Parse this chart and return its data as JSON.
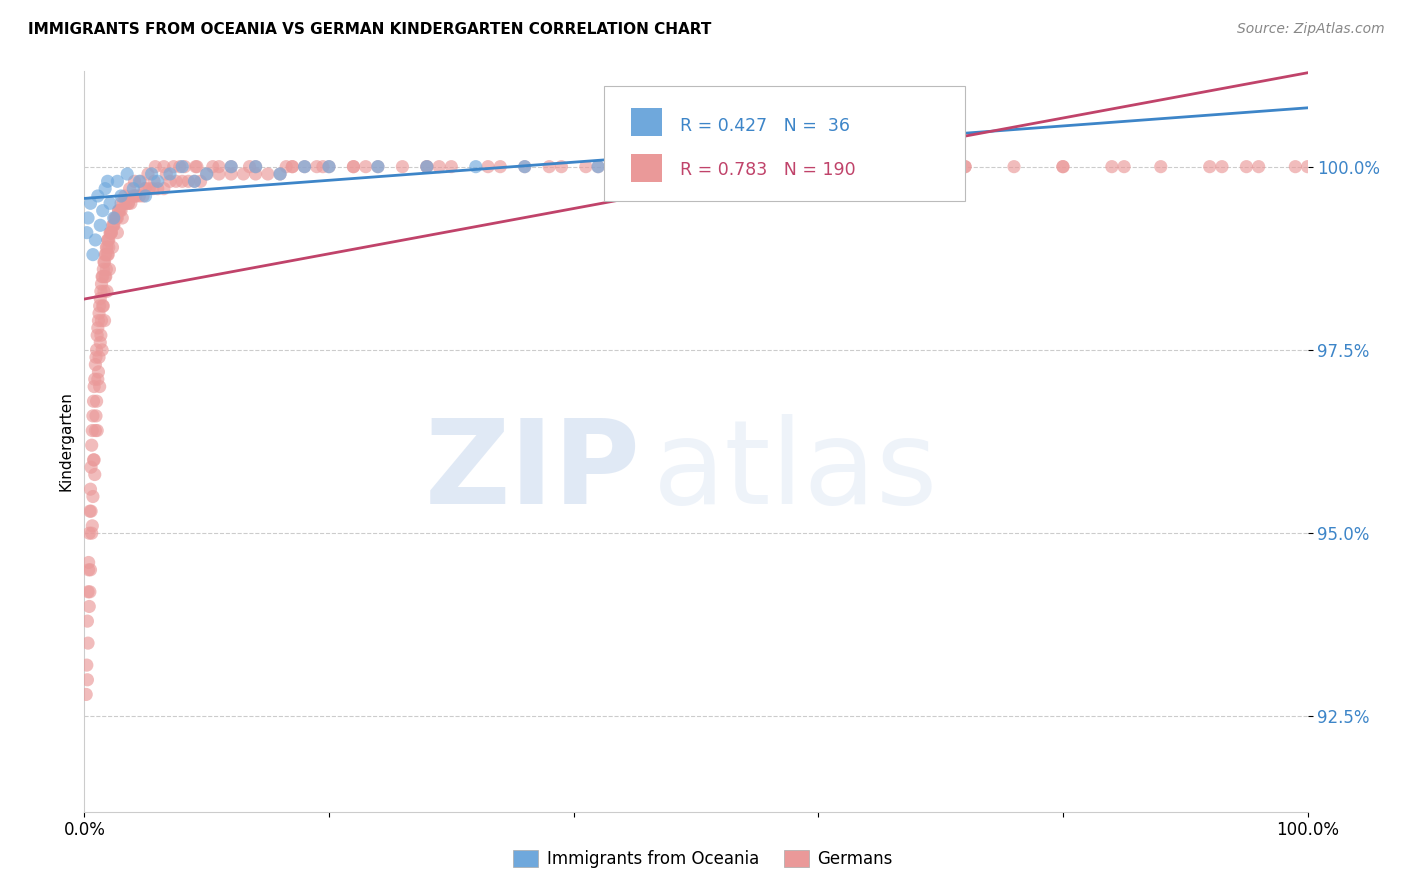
{
  "title": "IMMIGRANTS FROM OCEANIA VS GERMAN KINDERGARTEN CORRELATION CHART",
  "source": "Source: ZipAtlas.com",
  "ylabel": "Kindergarten",
  "ytick_values": [
    92.5,
    95.0,
    97.5,
    100.0
  ],
  "xrange": [
    0.0,
    100.0
  ],
  "yrange": [
    91.2,
    101.3
  ],
  "legend_blue_label": "Immigrants from Oceania",
  "legend_pink_label": "Germans",
  "R_blue": 0.427,
  "N_blue": 36,
  "R_pink": 0.783,
  "N_pink": 190,
  "blue_color": "#6fa8dc",
  "pink_color": "#ea9999",
  "blue_line_color": "#3d85c8",
  "pink_line_color": "#c0436a",
  "blue_scatter_x": [
    0.2,
    0.3,
    0.5,
    0.7,
    0.9,
    1.1,
    1.3,
    1.5,
    1.7,
    1.9,
    2.1,
    2.4,
    2.7,
    3.0,
    3.5,
    4.0,
    4.5,
    5.0,
    5.5,
    6.0,
    7.0,
    8.0,
    9.0,
    10.0,
    12.0,
    14.0,
    16.0,
    18.0,
    20.0,
    24.0,
    28.0,
    32.0,
    36.0,
    42.0,
    50.0,
    62.0
  ],
  "blue_scatter_y": [
    99.1,
    99.3,
    99.5,
    98.8,
    99.0,
    99.6,
    99.2,
    99.4,
    99.7,
    99.8,
    99.5,
    99.3,
    99.8,
    99.6,
    99.9,
    99.7,
    99.8,
    99.6,
    99.9,
    99.8,
    99.9,
    100.0,
    99.8,
    99.9,
    100.0,
    100.0,
    99.9,
    100.0,
    100.0,
    100.0,
    100.0,
    100.0,
    100.0,
    100.0,
    100.0,
    100.0
  ],
  "pink_scatter_x": [
    0.15,
    0.2,
    0.25,
    0.3,
    0.35,
    0.4,
    0.45,
    0.5,
    0.55,
    0.6,
    0.65,
    0.7,
    0.75,
    0.8,
    0.85,
    0.9,
    0.95,
    1.0,
    1.05,
    1.1,
    1.15,
    1.2,
    1.25,
    1.3,
    1.35,
    1.4,
    1.45,
    1.5,
    1.55,
    1.6,
    1.65,
    1.7,
    1.75,
    1.8,
    1.85,
    1.9,
    1.95,
    2.0,
    2.1,
    2.2,
    2.3,
    2.4,
    2.5,
    2.6,
    2.7,
    2.8,
    2.9,
    3.0,
    3.2,
    3.4,
    3.6,
    3.8,
    4.0,
    4.2,
    4.5,
    4.8,
    5.0,
    5.3,
    5.6,
    6.0,
    6.5,
    7.0,
    7.5,
    8.0,
    8.5,
    9.0,
    9.5,
    10.0,
    11.0,
    12.0,
    13.0,
    14.0,
    15.0,
    16.0,
    17.0,
    18.0,
    19.0,
    20.0,
    22.0,
    24.0,
    26.0,
    28.0,
    30.0,
    33.0,
    36.0,
    39.0,
    42.0,
    45.0,
    48.0,
    52.0,
    56.0,
    60.0,
    64.0,
    68.0,
    72.0,
    76.0,
    80.0,
    84.0,
    88.0,
    92.0,
    96.0,
    100.0,
    0.3,
    0.4,
    0.5,
    0.6,
    0.7,
    0.8,
    0.9,
    1.0,
    1.1,
    1.2,
    1.3,
    1.4,
    1.5,
    1.6,
    1.7,
    1.8,
    1.9,
    2.0,
    2.2,
    2.4,
    2.6,
    2.8,
    3.0,
    3.3,
    3.7,
    4.1,
    4.6,
    5.2,
    5.8,
    6.5,
    7.3,
    8.2,
    9.2,
    10.5,
    12.0,
    14.0,
    16.5,
    19.5,
    23.0,
    28.0,
    34.0,
    41.0,
    50.0,
    60.0,
    72.0,
    85.0,
    95.0,
    0.25,
    0.45,
    0.65,
    0.85,
    1.05,
    1.25,
    1.45,
    1.65,
    1.85,
    2.05,
    2.3,
    2.7,
    3.1,
    3.6,
    4.2,
    4.9,
    5.7,
    6.7,
    7.8,
    9.1,
    11.0,
    13.5,
    17.0,
    22.0,
    29.0,
    38.0,
    50.0,
    65.0,
    80.0,
    93.0,
    99.0,
    0.35,
    0.55,
    0.75,
    0.95,
    1.15,
    1.35,
    1.55,
    1.75,
    1.95,
    2.15
  ],
  "pink_scatter_y": [
    92.8,
    93.2,
    93.8,
    94.2,
    94.6,
    95.0,
    95.3,
    95.6,
    95.9,
    96.2,
    96.4,
    96.6,
    96.8,
    97.0,
    97.1,
    97.3,
    97.4,
    97.5,
    97.7,
    97.8,
    97.9,
    98.0,
    98.1,
    98.2,
    98.3,
    98.4,
    98.5,
    98.5,
    98.6,
    98.7,
    98.7,
    98.8,
    98.8,
    98.9,
    98.9,
    99.0,
    99.0,
    99.0,
    99.1,
    99.1,
    99.2,
    99.2,
    99.3,
    99.3,
    99.3,
    99.4,
    99.4,
    99.4,
    99.5,
    99.5,
    99.5,
    99.5,
    99.6,
    99.6,
    99.6,
    99.6,
    99.7,
    99.7,
    99.7,
    99.7,
    99.7,
    99.8,
    99.8,
    99.8,
    99.8,
    99.8,
    99.8,
    99.9,
    99.9,
    99.9,
    99.9,
    99.9,
    99.9,
    99.9,
    100.0,
    100.0,
    100.0,
    100.0,
    100.0,
    100.0,
    100.0,
    100.0,
    100.0,
    100.0,
    100.0,
    100.0,
    100.0,
    100.0,
    100.0,
    100.0,
    100.0,
    100.0,
    100.0,
    100.0,
    100.0,
    100.0,
    100.0,
    100.0,
    100.0,
    100.0,
    100.0,
    100.0,
    93.5,
    94.0,
    94.5,
    95.0,
    95.5,
    96.0,
    96.4,
    96.8,
    97.1,
    97.4,
    97.6,
    97.9,
    98.1,
    98.3,
    98.5,
    98.6,
    98.8,
    98.9,
    99.1,
    99.2,
    99.3,
    99.4,
    99.5,
    99.6,
    99.7,
    99.8,
    99.8,
    99.9,
    100.0,
    100.0,
    100.0,
    100.0,
    100.0,
    100.0,
    100.0,
    100.0,
    100.0,
    100.0,
    100.0,
    100.0,
    100.0,
    100.0,
    100.0,
    100.0,
    100.0,
    100.0,
    100.0,
    93.0,
    94.2,
    95.1,
    95.8,
    96.4,
    97.0,
    97.5,
    97.9,
    98.3,
    98.6,
    98.9,
    99.1,
    99.3,
    99.5,
    99.6,
    99.7,
    99.8,
    99.9,
    100.0,
    100.0,
    100.0,
    100.0,
    100.0,
    100.0,
    100.0,
    100.0,
    100.0,
    100.0,
    100.0,
    100.0,
    100.0,
    94.5,
    95.3,
    96.0,
    96.6,
    97.2,
    97.7,
    98.1,
    98.5,
    98.8,
    99.1
  ]
}
